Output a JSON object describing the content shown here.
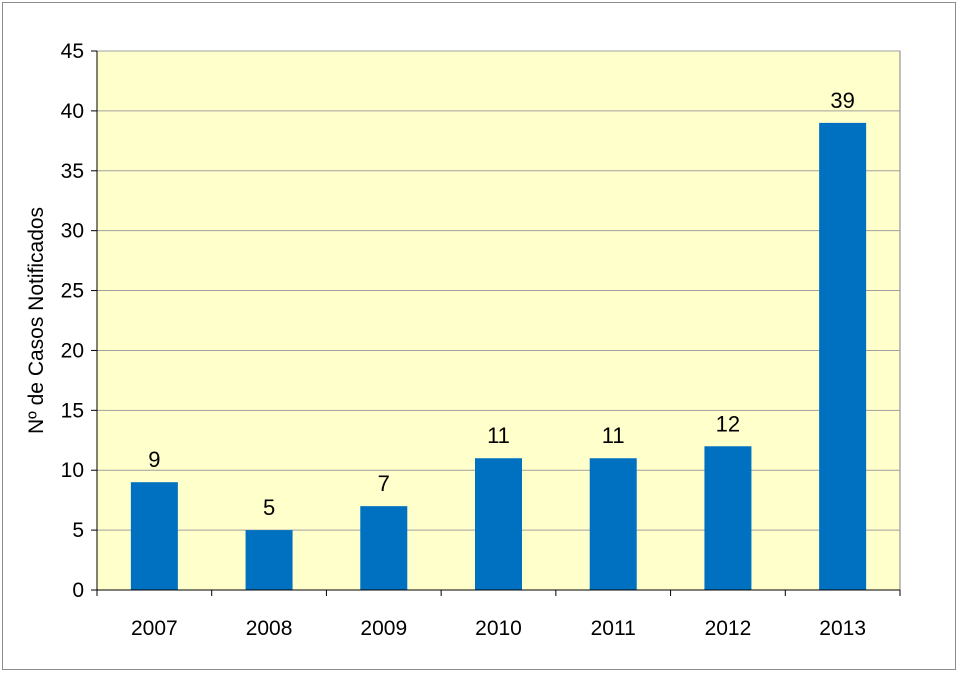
{
  "chart_data": {
    "type": "bar",
    "title": "",
    "xlabel": "",
    "ylabel": "Nº de Casos Notificados",
    "categories": [
      "2007",
      "2008",
      "2009",
      "2010",
      "2011",
      "2012",
      "2013"
    ],
    "values": [
      9,
      5,
      7,
      11,
      11,
      12,
      39
    ],
    "data_labels": [
      "9",
      "5",
      "7",
      "11",
      "11",
      "12",
      "39"
    ],
    "ylim": [
      0,
      45
    ],
    "yticks": [
      "0",
      "5",
      "10",
      "15",
      "20",
      "25",
      "30",
      "35",
      "40",
      "45"
    ],
    "grid": true,
    "legend": "none",
    "colors": {
      "bar": "#0070C0",
      "plot_background": "#FFFFCC",
      "gridline": "#A0A0A0"
    }
  }
}
